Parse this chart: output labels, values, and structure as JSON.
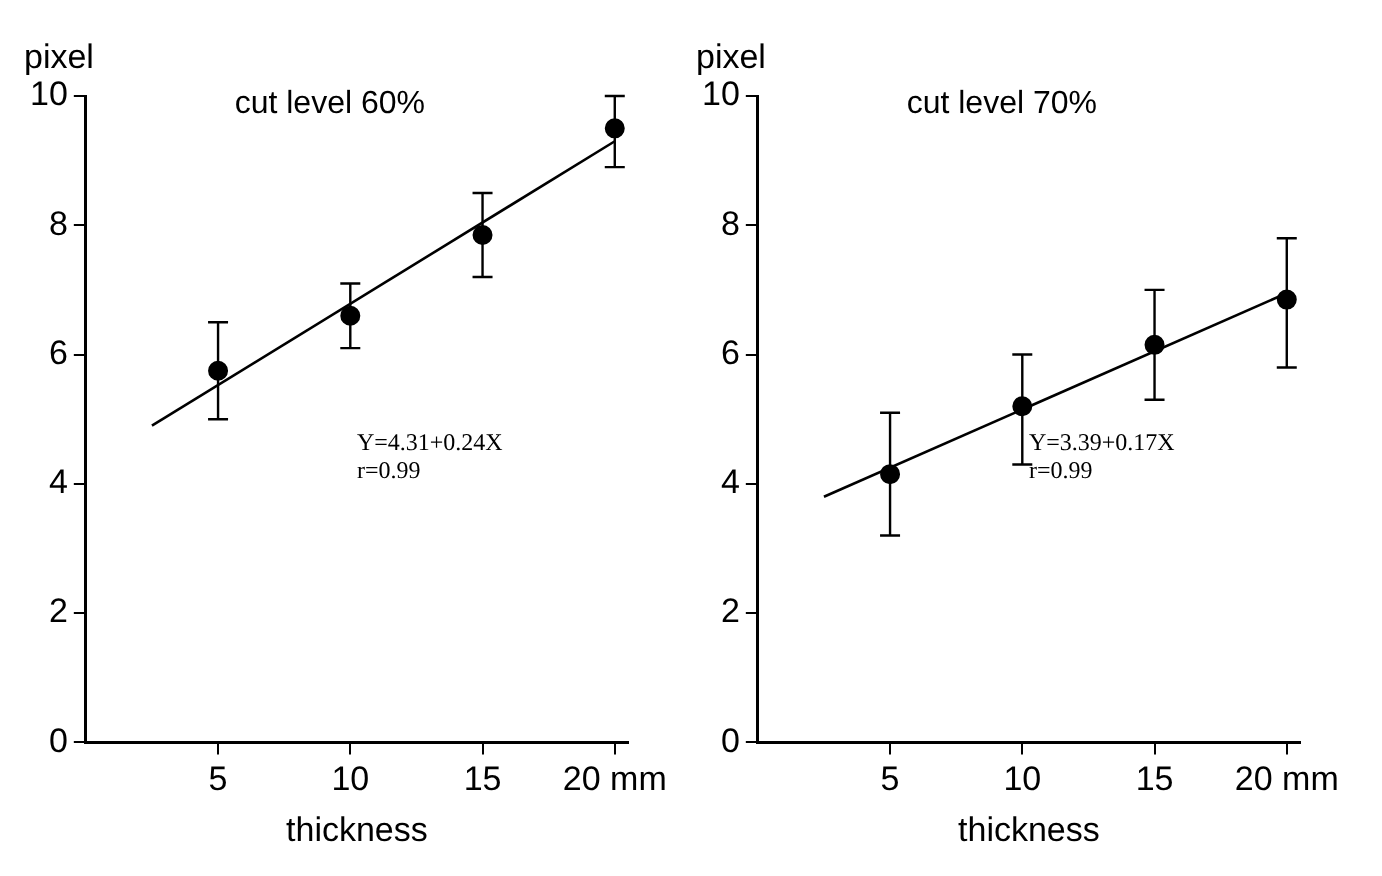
{
  "chart_data": [
    {
      "type": "scatter",
      "title": "cut level 60%",
      "ylabel": "pixel",
      "xlabel": "thickness",
      "xlim": [
        0,
        20.5
      ],
      "xticks": [
        5,
        10,
        15,
        {
          "value": 20,
          "label": "20 mm"
        }
      ],
      "ylim": [
        0,
        10
      ],
      "yticks": [
        0,
        2,
        4,
        6,
        8,
        10
      ],
      "grid": false,
      "legend": false,
      "marker": "circle",
      "annotations": [
        "Y=4.31+0.24X",
        "r=0.99"
      ],
      "series": [
        {
          "type": "scatter",
          "color": "#000000",
          "x": [
            5,
            10,
            15,
            20
          ],
          "values": [
            5.75,
            6.6,
            7.85,
            9.5
          ],
          "errors": [
            [
              5.0,
              6.5
            ],
            [
              6.1,
              7.1
            ],
            [
              7.2,
              8.5
            ],
            [
              8.9,
              10.0
            ]
          ]
        },
        {
          "type": "line",
          "color": "#000000",
          "marker": "none",
          "x": [
            2.5,
            20
          ],
          "values": [
            4.9,
            9.3
          ]
        }
      ]
    },
    {
      "type": "scatter",
      "title": "cut level 70%",
      "ylabel": "pixel",
      "xlabel": "thickness",
      "xlim": [
        0,
        20.5
      ],
      "xticks": [
        5,
        10,
        15,
        {
          "value": 20,
          "label": "20 mm"
        }
      ],
      "ylim": [
        0,
        10
      ],
      "yticks": [
        0,
        2,
        4,
        6,
        8,
        10
      ],
      "grid": false,
      "legend": false,
      "marker": "circle",
      "annotations": [
        "Y=3.39+0.17X",
        "r=0.99"
      ],
      "series": [
        {
          "type": "scatter",
          "color": "#000000",
          "x": [
            5,
            10,
            15,
            20
          ],
          "values": [
            4.15,
            5.2,
            6.15,
            6.85
          ],
          "errors": [
            [
              3.2,
              5.1
            ],
            [
              4.3,
              6.0
            ],
            [
              5.3,
              7.0
            ],
            [
              5.8,
              7.8
            ]
          ]
        },
        {
          "type": "line",
          "color": "#000000",
          "marker": "none",
          "x": [
            2.5,
            20
          ],
          "values": [
            3.8,
            6.95
          ]
        }
      ]
    }
  ]
}
